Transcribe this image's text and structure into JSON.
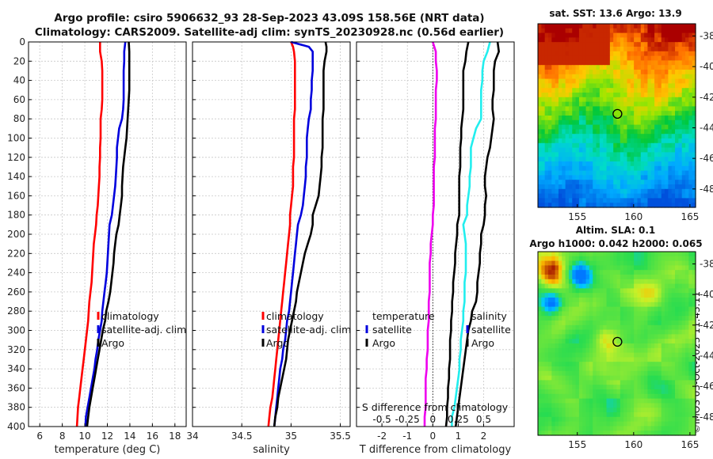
{
  "header": {
    "title_line1": "Argo profile: csiro 5906632_93 28-Sep-2023 43.09S 158.56E (NRT data)",
    "title_line2": "Climatology: CARS2009. Satellite-adj clim: synTS_20230928.nc (0.56d earlier)"
  },
  "credit": "©IMOS 03-Oct-2023 11:43:11",
  "colors": {
    "climatology": "#ff0000",
    "satellite": "#0000dd",
    "argo": "#000000",
    "t_diff": "#22eeee",
    "s_diff": "#ee00ee"
  },
  "chart_data": [
    {
      "type": "line",
      "id": "temperature",
      "xlabel": "temperature (deg C)",
      "xlim": [
        5,
        19
      ],
      "xticks": [
        "6",
        "8",
        "10",
        "12",
        "14",
        "16",
        "18"
      ],
      "ylim": [
        0,
        400
      ],
      "yticks": [
        "0",
        "20",
        "40",
        "60",
        "80",
        "100",
        "120",
        "140",
        "160",
        "180",
        "200",
        "220",
        "240",
        "260",
        "280",
        "300",
        "320",
        "340",
        "360",
        "380",
        "400"
      ],
      "legend": [
        "climatology",
        "satellite-adj. clim",
        "Argo"
      ],
      "depth": [
        0,
        10,
        20,
        30,
        40,
        50,
        60,
        70,
        80,
        90,
        100,
        110,
        120,
        130,
        140,
        150,
        160,
        170,
        180,
        190,
        200,
        210,
        220,
        230,
        240,
        250,
        260,
        270,
        280,
        290,
        300,
        310,
        320,
        330,
        340,
        350,
        360,
        370,
        380,
        390,
        400
      ],
      "series": [
        {
          "name": "climatology",
          "values": [
            11.35,
            11.35,
            11.5,
            11.55,
            11.55,
            11.55,
            11.55,
            11.5,
            11.4,
            11.4,
            11.4,
            11.35,
            11.35,
            11.3,
            11.3,
            11.25,
            11.2,
            11.15,
            11.05,
            11.0,
            10.9,
            10.8,
            10.75,
            10.7,
            10.65,
            10.6,
            10.5,
            10.4,
            10.35,
            10.3,
            10.2,
            10.1,
            10.0,
            9.9,
            9.8,
            9.7,
            9.6,
            9.5,
            9.4,
            9.35,
            9.3
          ]
        },
        {
          "name": "satellite-adj. clim",
          "values": [
            13.6,
            13.5,
            13.5,
            13.45,
            13.45,
            13.45,
            13.45,
            13.4,
            13.3,
            13.05,
            12.95,
            12.85,
            12.85,
            12.8,
            12.75,
            12.7,
            12.6,
            12.5,
            12.4,
            12.2,
            12.15,
            12.1,
            12.05,
            12.0,
            11.95,
            11.85,
            11.75,
            11.65,
            11.55,
            11.5,
            11.35,
            11.2,
            11.1,
            10.95,
            10.85,
            10.7,
            10.55,
            10.4,
            10.25,
            10.1,
            10.05
          ]
        },
        {
          "name": "Argo",
          "values": [
            13.9,
            13.95,
            13.95,
            13.95,
            13.95,
            13.95,
            13.9,
            13.85,
            13.8,
            13.75,
            13.7,
            13.6,
            13.5,
            13.4,
            13.35,
            13.3,
            13.3,
            13.2,
            13.1,
            13.0,
            12.8,
            12.7,
            12.6,
            12.55,
            12.45,
            12.35,
            12.25,
            12.1,
            11.9,
            11.8,
            11.6,
            11.45,
            11.3,
            11.15,
            11.0,
            10.85,
            10.7,
            10.55,
            10.4,
            10.3,
            10.2
          ]
        }
      ]
    },
    {
      "type": "line",
      "id": "salinity",
      "xlabel": "salinity",
      "xlim": [
        34,
        35.6
      ],
      "xticks": [
        "34",
        "34.5",
        "35",
        "35.5"
      ],
      "ylim": [
        0,
        400
      ],
      "legend": [
        "climatology",
        "satellite-adj. clim",
        "Argo"
      ],
      "depth": [
        0,
        5,
        10,
        20,
        30,
        40,
        50,
        60,
        70,
        80,
        90,
        100,
        110,
        120,
        130,
        140,
        150,
        160,
        170,
        180,
        190,
        200,
        210,
        220,
        230,
        240,
        250,
        260,
        270,
        280,
        290,
        300,
        310,
        320,
        330,
        340,
        350,
        360,
        370,
        380,
        390,
        400
      ],
      "series": [
        {
          "name": "climatology",
          "values": [
            35.0,
            35.02,
            35.03,
            35.04,
            35.04,
            35.04,
            35.04,
            35.04,
            35.04,
            35.03,
            35.03,
            35.03,
            35.03,
            35.03,
            35.02,
            35.02,
            35.02,
            35.01,
            35.0,
            34.99,
            34.99,
            34.98,
            34.97,
            34.96,
            34.95,
            34.94,
            34.93,
            34.92,
            34.91,
            34.9,
            34.89,
            34.88,
            34.87,
            34.86,
            34.85,
            34.84,
            34.83,
            34.82,
            34.81,
            34.79,
            34.78,
            34.77
          ]
        },
        {
          "name": "satellite-adj. clim",
          "values": [
            35.0,
            35.18,
            35.22,
            35.22,
            35.22,
            35.21,
            35.21,
            35.2,
            35.2,
            35.18,
            35.17,
            35.16,
            35.16,
            35.16,
            35.15,
            35.15,
            35.14,
            35.13,
            35.12,
            35.1,
            35.07,
            35.06,
            35.05,
            35.04,
            35.03,
            35.02,
            35.01,
            35.0,
            34.99,
            34.98,
            34.96,
            34.95,
            34.94,
            34.92,
            34.91,
            34.89,
            34.88,
            34.87,
            34.86,
            34.85,
            34.84,
            34.83
          ]
        },
        {
          "name": "Argo",
          "values": [
            35.35,
            35.36,
            35.36,
            35.34,
            35.33,
            35.33,
            35.33,
            35.33,
            35.33,
            35.32,
            35.32,
            35.32,
            35.32,
            35.31,
            35.31,
            35.3,
            35.29,
            35.28,
            35.25,
            35.22,
            35.22,
            35.2,
            35.17,
            35.14,
            35.12,
            35.1,
            35.08,
            35.06,
            35.05,
            35.03,
            35.01,
            34.99,
            34.97,
            34.96,
            34.95,
            34.93,
            34.91,
            34.89,
            34.87,
            34.86,
            34.84,
            34.83
          ]
        }
      ]
    },
    {
      "type": "line",
      "id": "difference",
      "xlabel": "T difference from climatology",
      "xlim": [
        -3,
        3.2
      ],
      "xticks": [
        "-2",
        "-1",
        "0",
        "1",
        "2"
      ],
      "top_axis_label": "S difference from climatology",
      "top_ticks": [
        "-0.5",
        "-0.25",
        "0",
        "0.25",
        "0.5"
      ],
      "top_tick_values": [
        -0.5,
        -0.25,
        0,
        0.25,
        0.5
      ],
      "ylim": [
        0,
        400
      ],
      "legend_left": [
        "temperature",
        "satellite",
        "Argo"
      ],
      "legend_right": [
        "salinity",
        "satellite",
        "Argo"
      ],
      "depth": [
        0,
        10,
        20,
        30,
        40,
        50,
        60,
        70,
        80,
        90,
        100,
        110,
        120,
        130,
        140,
        150,
        160,
        170,
        180,
        190,
        200,
        210,
        220,
        230,
        240,
        250,
        260,
        270,
        280,
        290,
        300,
        310,
        320,
        330,
        340,
        350,
        360,
        370,
        380,
        390,
        400
      ],
      "series": [
        {
          "name": "T satellite",
          "kind": "T",
          "values": [
            2.25,
            2.15,
            2.0,
            1.95,
            1.95,
            1.9,
            1.9,
            1.9,
            1.9,
            1.7,
            1.6,
            1.5,
            1.5,
            1.5,
            1.45,
            1.45,
            1.4,
            1.35,
            1.35,
            1.2,
            1.25,
            1.3,
            1.3,
            1.3,
            1.3,
            1.25,
            1.25,
            1.25,
            1.2,
            1.2,
            1.15,
            1.1,
            1.1,
            1.05,
            1.05,
            1.0,
            0.95,
            0.9,
            0.85,
            0.75,
            0.75
          ]
        },
        {
          "name": "T Argo",
          "kind": "T",
          "values": [
            2.55,
            2.6,
            2.45,
            2.4,
            2.4,
            2.4,
            2.35,
            2.35,
            2.4,
            2.35,
            2.3,
            2.25,
            2.15,
            2.1,
            2.05,
            2.05,
            2.1,
            2.05,
            2.05,
            2.0,
            1.9,
            1.9,
            1.85,
            1.85,
            1.8,
            1.75,
            1.75,
            1.7,
            1.55,
            1.5,
            1.4,
            1.35,
            1.3,
            1.25,
            1.2,
            1.15,
            1.1,
            1.05,
            1.0,
            0.95,
            0.9
          ]
        },
        {
          "name": "S difference",
          "kind": "S",
          "values": [
            0.0,
            0.03,
            0.03,
            0.04,
            0.04,
            0.03,
            0.03,
            0.03,
            0.03,
            0.02,
            0.02,
            0.02,
            0.02,
            0.01,
            0.01,
            0.01,
            0.01,
            0.01,
            0.0,
            0.0,
            -0.01,
            -0.02,
            -0.02,
            -0.03,
            -0.03,
            -0.03,
            -0.03,
            -0.04,
            -0.04,
            -0.04,
            -0.05,
            -0.05,
            -0.05,
            -0.06,
            -0.06,
            -0.07,
            -0.07,
            -0.07,
            -0.07,
            -0.08,
            -0.08
          ]
        },
        {
          "name": "S Argo",
          "kind": "S",
          "values": [
            0.35,
            0.33,
            0.32,
            0.3,
            0.3,
            0.3,
            0.3,
            0.3,
            0.29,
            0.28,
            0.28,
            0.27,
            0.27,
            0.27,
            0.26,
            0.26,
            0.26,
            0.26,
            0.26,
            0.24,
            0.24,
            0.23,
            0.22,
            0.22,
            0.21,
            0.2,
            0.2,
            0.19,
            0.19,
            0.18,
            0.18,
            0.17,
            0.17,
            0.17,
            0.16,
            0.16,
            0.15,
            0.15,
            0.14,
            0.14,
            0.13
          ]
        }
      ]
    },
    {
      "type": "heatmap",
      "id": "sst_map",
      "title": "sat. SST: 13.6 Argo: 13.9",
      "xticks": [
        "155",
        "160",
        "165"
      ],
      "yticks": [
        "-38",
        "-40",
        "-42",
        "-44",
        "-46",
        "-48"
      ],
      "xlim": [
        151.5,
        165.5
      ],
      "ylim": [
        -49.2,
        -37.2
      ],
      "marker": [
        158.56,
        -43.09
      ]
    },
    {
      "type": "heatmap",
      "id": "sla_map",
      "title_line1": "Altim. SLA: 0.1",
      "title_line2": "Argo h1000: 0.042 h2000: 0.065",
      "xticks": [
        "155",
        "160",
        "165"
      ],
      "yticks": [
        "-38",
        "-40",
        "-42",
        "-44",
        "-46",
        "-48"
      ],
      "xlim": [
        151.5,
        165.5
      ],
      "ylim": [
        -49.2,
        -37.2
      ],
      "marker": [
        158.56,
        -43.09
      ]
    }
  ]
}
